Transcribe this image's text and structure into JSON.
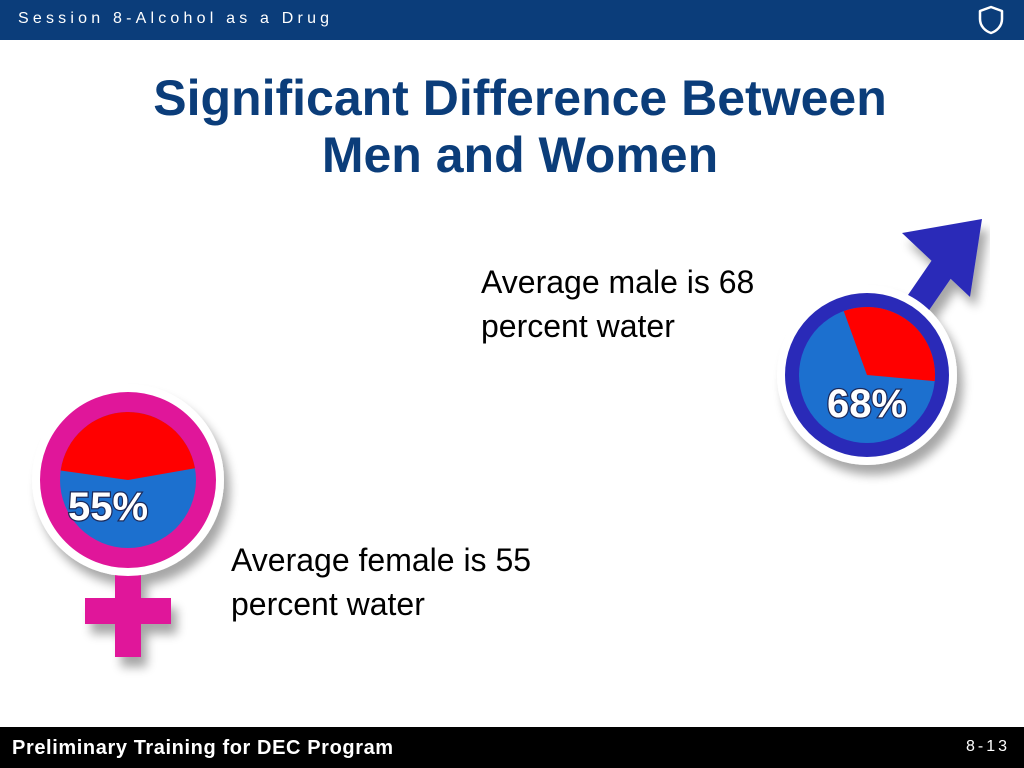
{
  "header": {
    "session_label": "Session 8-Alcohol as a Drug",
    "icon": "shield-icon"
  },
  "slide": {
    "title_lines": [
      "Significant Difference Between",
      "Men and Women"
    ],
    "male": {
      "caption_lines": [
        "Average male is 68",
        "percent water"
      ],
      "percent_label": "68%",
      "water_fraction": 0.68,
      "icon": "male-symbol-icon",
      "ring_color": "#2b2bb8",
      "water_color": "#1f6fcf",
      "other_color": "#ff0000"
    },
    "female": {
      "caption_lines": [
        "Average female is 55",
        "percent water"
      ],
      "percent_label": "55%",
      "water_fraction": 0.55,
      "icon": "female-symbol-icon",
      "ring_color": "#e0179a",
      "water_color": "#1f6fcf",
      "other_color": "#ff0000"
    }
  },
  "footer": {
    "program_title": "Preliminary Training for DEC Program",
    "page_number": "8-13"
  },
  "colors": {
    "header_bar": "#0b3d7a",
    "title_text": "#0b3d7a",
    "footer_bar": "#000000"
  }
}
